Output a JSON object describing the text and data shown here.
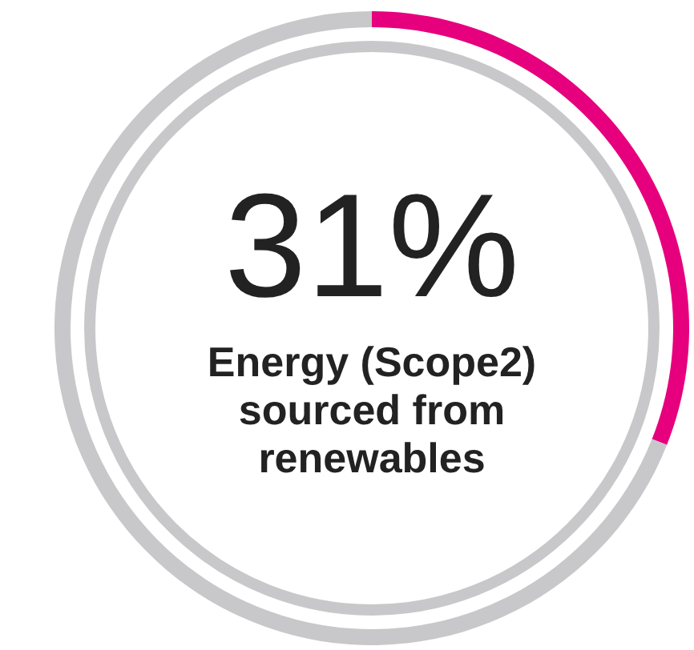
{
  "chart_data": {
    "type": "donut",
    "title": "Energy (Scope2) sourced from renewables",
    "categories": [
      null,
      null
    ],
    "values": [
      31,
      69
    ],
    "colors": [
      "#e6007e",
      "#c8c8ca"
    ],
    "value_labels": [
      "31%",
      null
    ]
  }
}
